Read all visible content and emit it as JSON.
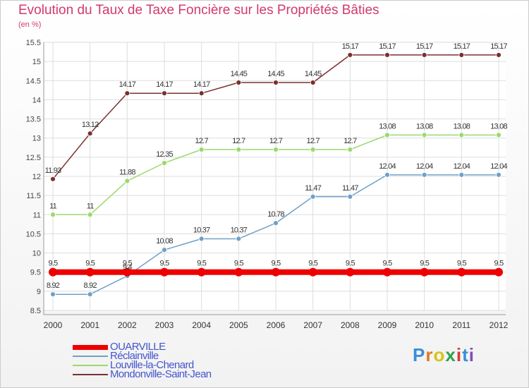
{
  "title": "Evolution du Taux de Taxe Foncière sur les Propriétés Bâties",
  "unit_label": "(en %)",
  "logo": {
    "text": "Proxiti",
    "colors": [
      "#3b8ed8",
      "#e07a1f",
      "#d9c21c",
      "#2ca34a",
      "#d23a3a",
      "#3b8ed8",
      "#7f4fb3"
    ]
  },
  "chart_data": {
    "type": "line",
    "categories": [
      "2000",
      "2001",
      "2002",
      "2003",
      "2004",
      "2005",
      "2006",
      "2007",
      "2008",
      "2009",
      "2010",
      "2011",
      "2012"
    ],
    "ylim": [
      8.5,
      15.5
    ],
    "yticks": [
      "8.5",
      "9",
      "9.5",
      "10",
      "10.5",
      "11",
      "11.5",
      "12",
      "12.5",
      "13",
      "13.5",
      "14",
      "14.5",
      "15",
      "15.5"
    ],
    "grid": true,
    "legend_position": "bottom-left",
    "series": [
      {
        "name": "OUARVILLE",
        "color": "#ee0000",
        "width": 8,
        "labels_below": false,
        "values": [
          9.5,
          9.5,
          9.5,
          9.5,
          9.5,
          9.5,
          9.5,
          9.5,
          9.5,
          9.5,
          9.5,
          9.5,
          9.5
        ],
        "labels": [
          "9.5",
          "9.5",
          "9.5",
          "9.5",
          "9.5",
          "9.5",
          "9.5",
          "9.5",
          "9.5",
          "9.5",
          "9.5",
          "9.5",
          "9.5"
        ]
      },
      {
        "name": "Réclainville",
        "color": "#6fa1c9",
        "width": 1.5,
        "labels_below": false,
        "values": [
          8.92,
          8.92,
          9.4,
          10.08,
          10.37,
          10.37,
          10.78,
          11.47,
          11.47,
          12.04,
          12.04,
          12.04,
          12.04
        ],
        "labels": [
          "8.92",
          "8.92",
          "9.4",
          "10.08",
          "10.37",
          "10.37",
          "10.78",
          "11.47",
          "11.47",
          "12.04",
          "12.04",
          "12.04",
          "12.04"
        ]
      },
      {
        "name": "Louville-la-Chenard",
        "color": "#9bd96c",
        "width": 1.5,
        "labels_below": false,
        "values": [
          11,
          11,
          11.88,
          12.35,
          12.7,
          12.7,
          12.7,
          12.7,
          12.7,
          13.08,
          13.08,
          13.08,
          13.08
        ],
        "labels": [
          "11",
          "11",
          "11.88",
          "12.35",
          "12.7",
          "12.7",
          "12.7",
          "12.7",
          "12.7",
          "13.08",
          "13.08",
          "13.08",
          "13.08"
        ]
      },
      {
        "name": "Mondonville-Saint-Jean",
        "color": "#7a3030",
        "width": 1.5,
        "labels_below": false,
        "values": [
          11.93,
          13.12,
          14.17,
          14.17,
          14.17,
          14.45,
          14.45,
          14.45,
          15.17,
          15.17,
          15.17,
          15.17,
          15.17
        ],
        "labels": [
          "11.93",
          "13.12",
          "14.17",
          "14.17",
          "14.17",
          "14.45",
          "14.45",
          "14.45",
          "15.17",
          "15.17",
          "15.17",
          "15.17",
          "15.17"
        ]
      }
    ]
  },
  "legend": [
    {
      "label": "OUARVILLE",
      "color": "#ee0000",
      "thick": true
    },
    {
      "label": "Réclainville",
      "color": "#6fa1c9",
      "thick": false
    },
    {
      "label": "Louville-la-Chenard",
      "color": "#9bd96c",
      "thick": false
    },
    {
      "label": "Mondonville-Saint-Jean",
      "color": "#7a3030",
      "thick": false
    }
  ]
}
